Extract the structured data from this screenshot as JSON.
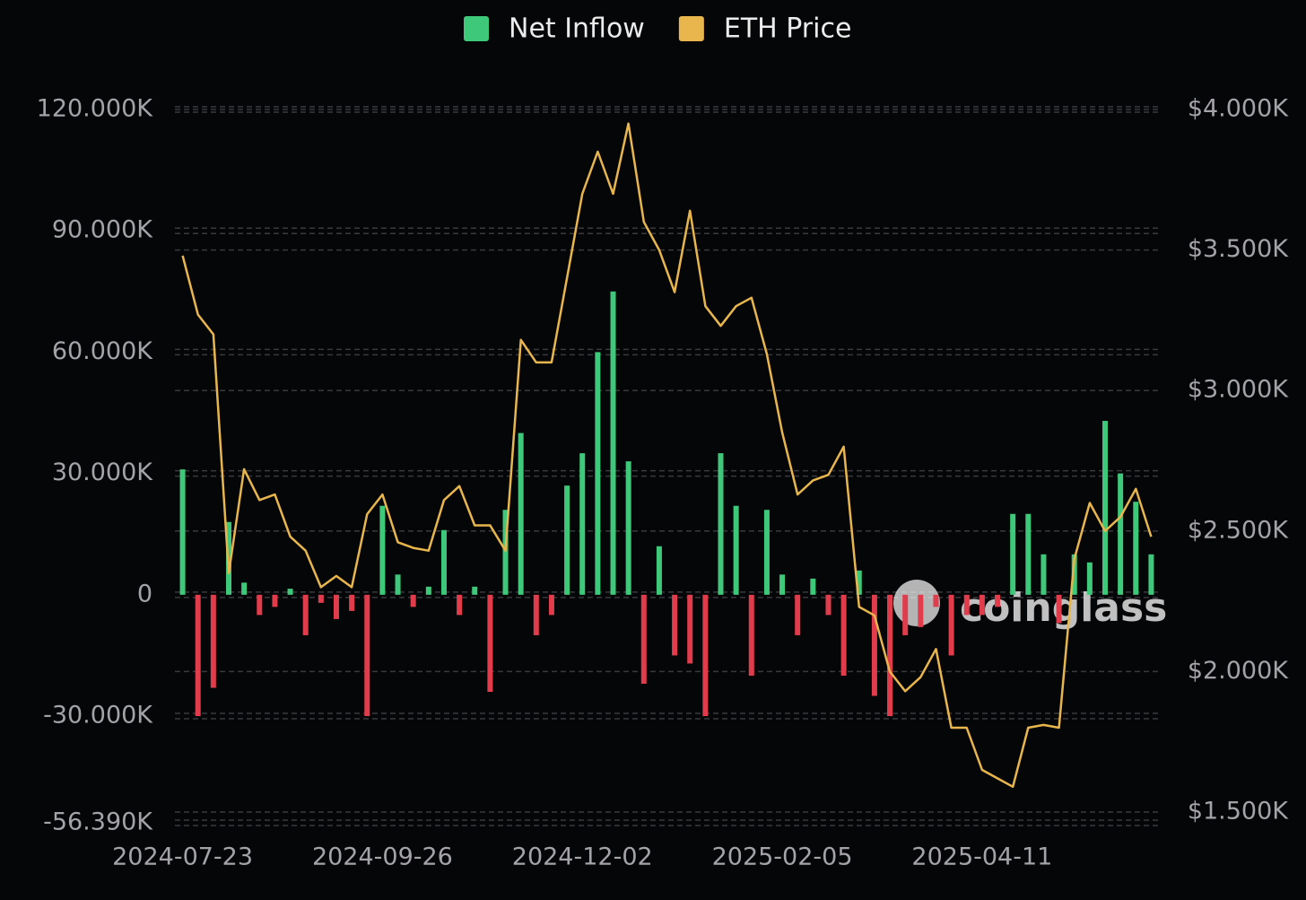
{
  "chart_data": {
    "type": "bar-line",
    "legend_position": "top",
    "watermark": "coinglass",
    "categories": [
      "2024-07-23",
      null,
      null,
      null,
      null,
      null,
      null,
      null,
      null,
      null,
      null,
      null,
      null,
      "2024-09-26",
      null,
      null,
      null,
      null,
      null,
      null,
      null,
      null,
      null,
      null,
      null,
      null,
      "2024-12-02",
      null,
      null,
      null,
      null,
      null,
      null,
      null,
      null,
      null,
      null,
      null,
      null,
      "2025-02-05",
      null,
      null,
      null,
      null,
      null,
      null,
      null,
      null,
      null,
      null,
      null,
      null,
      "2025-04-11",
      null,
      null,
      null,
      null,
      null,
      null,
      null,
      null,
      null,
      null,
      null
    ],
    "series": [
      {
        "name": "Net Inflow",
        "type": "bar",
        "color": "#3ec97a",
        "negative_color": "#e03c4c",
        "axis": "y",
        "values": [
          31000,
          -30000,
          -23000,
          18000,
          3000,
          -5000,
          -3000,
          1500,
          -10000,
          -2000,
          -6000,
          -4000,
          -30000,
          22000,
          5000,
          -3000,
          2000,
          16000,
          -5000,
          2000,
          -24000,
          21000,
          40000,
          -10000,
          -5000,
          27000,
          35000,
          60000,
          75000,
          33000,
          -22000,
          12000,
          -15000,
          -17000,
          -30000,
          35000,
          22000,
          -20000,
          21000,
          5000,
          -10000,
          4000,
          -5000,
          -20000,
          6000,
          -25000,
          -30000,
          -10000,
          -8000,
          -3000,
          -15000,
          -5000,
          -5000,
          -3000,
          20000,
          20000,
          10000,
          -7000,
          10000,
          8000,
          43000,
          30000,
          23000,
          10000
        ]
      },
      {
        "name": "ETH Price",
        "type": "line",
        "color": "#e8b64c",
        "axis": "y2",
        "values": [
          3480,
          3270,
          3200,
          2350,
          2720,
          2610,
          2630,
          2480,
          2430,
          2300,
          2340,
          2300,
          2560,
          2630,
          2460,
          2440,
          2430,
          2610,
          2660,
          2520,
          2520,
          2430,
          3180,
          3100,
          3100,
          3400,
          3700,
          3850,
          3700,
          3950,
          3600,
          3500,
          3350,
          3640,
          3300,
          3230,
          3300,
          3330,
          3130,
          2850,
          2630,
          2680,
          2700,
          2800,
          2230,
          2200,
          2000,
          1930,
          1980,
          2080,
          1800,
          1800,
          1650,
          1620,
          1590,
          1800,
          1810,
          1800,
          2400,
          2600,
          2500,
          2550,
          2650,
          2480
        ]
      }
    ],
    "ylim": [
      -56390,
      120000
    ],
    "yticks": [
      {
        "value": 120000,
        "label": "120.000K"
      },
      {
        "value": 90000,
        "label": "90.000K"
      },
      {
        "value": 60000,
        "label": "60.000K"
      },
      {
        "value": 30000,
        "label": "30.000K"
      },
      0,
      {
        "value": -30000,
        "label": "-30.000K"
      },
      {
        "value": -56390,
        "label": "-56.390K"
      }
    ],
    "y2lim": [
      1500,
      4000
    ],
    "y2ticks": [
      {
        "value": 4000,
        "label": "$4.000K"
      },
      {
        "value": 3500,
        "label": "$3.500K"
      },
      {
        "value": 3000,
        "label": "$3.000K"
      },
      {
        "value": 2500,
        "label": "$2.500K"
      },
      {
        "value": 2000,
        "label": "$2.000K"
      },
      {
        "value": 1500,
        "label": "$1.500K"
      }
    ],
    "grid": true
  }
}
